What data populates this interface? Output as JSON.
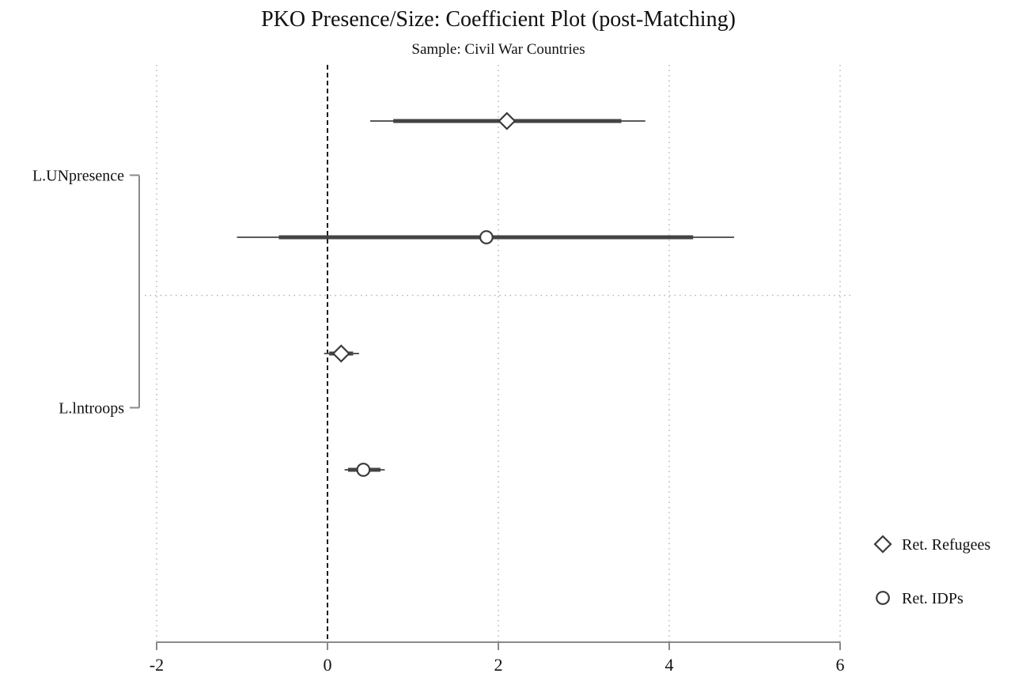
{
  "chart_data": {
    "type": "scatter",
    "subtype": "coefficient-plot",
    "title": "PKO Presence/Size: Coefficient Plot (post-Matching)",
    "subtitle": "Sample: Civil War Countries",
    "xlabel": "",
    "ylabel": "",
    "xlim": [
      -2,
      6
    ],
    "xticks": [
      -2,
      0,
      2,
      4,
      6
    ],
    "reference_line_x": 0,
    "grid": "x",
    "categories": [
      "L.UNpresence",
      "L.lntroops"
    ],
    "legend_position": "right",
    "series": [
      {
        "name": "Ret. Refugees",
        "marker": "diamond",
        "points": [
          {
            "category": "L.UNpresence",
            "estimate": 2.1,
            "ci_inner": [
              0.77,
              3.44
            ],
            "ci_outer": [
              0.5,
              3.72
            ]
          },
          {
            "category": "L.lntroops",
            "estimate": 0.16,
            "ci_inner": [
              0.02,
              0.3
            ],
            "ci_outer": [
              -0.04,
              0.37
            ]
          }
        ]
      },
      {
        "name": "Ret. IDPs",
        "marker": "circle",
        "points": [
          {
            "category": "L.UNpresence",
            "estimate": 1.86,
            "ci_inner": [
              -0.57,
              4.28
            ],
            "ci_outer": [
              -1.06,
              4.76
            ]
          },
          {
            "category": "L.lntroops",
            "estimate": 0.42,
            "ci_inner": [
              0.24,
              0.62
            ],
            "ci_outer": [
              0.2,
              0.67
            ]
          }
        ]
      }
    ],
    "colors": {
      "marker": "#3a3a3a",
      "inner_ci": "#444444",
      "outer_ci": "#5a5a5a",
      "axis": "#8a8a8a",
      "grid": "#b5b5b5",
      "reference_line": "#1a1a1a"
    }
  }
}
